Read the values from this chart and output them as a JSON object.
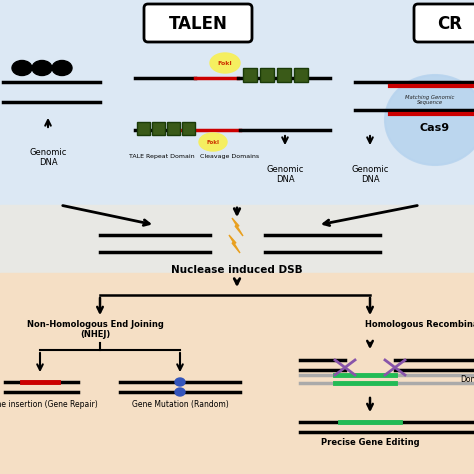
{
  "bg_top": "#dce8f4",
  "bg_mid": "#e8e8e4",
  "bg_bottom": "#f5dfc5",
  "title_talen": "TALEN",
  "title_crispr": "CR",
  "text_genomic_dna": "Genomic\nDNA",
  "text_nuclease": "Nuclease induced DSB",
  "text_nhej": "Non-Homologous End Joining\n(NHEJ)",
  "text_hr": "Homologous Recombination (HR)",
  "text_gene_insert": "Gene insertion (Gene Repair)",
  "text_gene_mut": "Gene Mutation (Random)",
  "text_precise": "Precise Gene Editing",
  "text_donor": "Dona",
  "text_tale": "TALE Repeat Domain",
  "text_cleavage": "Cleavage Domains",
  "text_cas9": "Cas9",
  "text_matching": "Matching Genomic\nSequence",
  "green_dark": "#3a5a18",
  "red_seg": "#cc0000",
  "blue_oval": "#3355bb",
  "green_seg": "#22bb55",
  "purple_x": "#8855aa",
  "gray_donor": "#aaaaaa",
  "orange_bolt": "#e8a020",
  "lw_dna": 2.5,
  "lw_arrow": 1.8
}
